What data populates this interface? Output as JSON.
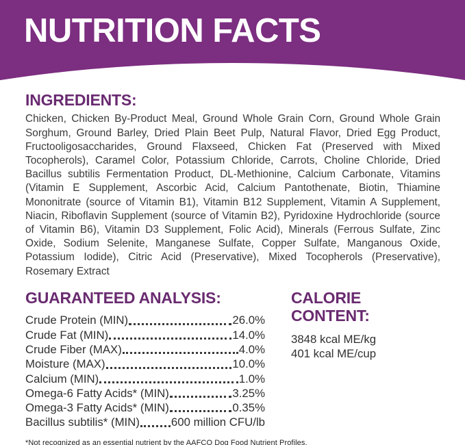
{
  "banner": {
    "title": "NUTRITION FACTS"
  },
  "ingredients": {
    "heading": "INGREDIENTS:",
    "text": "Chicken, Chicken By-Product Meal, Ground Whole Grain Corn, Ground Whole Grain Sorghum, Ground Barley, Dried Plain Beet Pulp, Natural Flavor, Dried Egg Product, Fructooligosaccharides, Ground Flaxseed, Chicken Fat (Preserved with Mixed Tocopherols), Caramel Color, Potassium Chloride, Carrots, Choline Chloride, Dried Bacillus subtilis Fermentation Product, DL-Methionine, Calcium Carbonate, Vitamins (Vitamin E Supplement, Ascorbic Acid, Calcium Pantothenate, Biotin, Thiamine Mononitrate (source of Vitamin B1), Vitamin B12 Supplement, Vitamin A Supplement, Niacin, Riboflavin Supplement (source of Vitamin B2), Pyridoxine Hydrochloride (source of Vitamin B6), Vitamin D3 Supplement, Folic Acid), Minerals (Ferrous Sulfate, Zinc Oxide, Sodium Selenite, Manganese Sulfate, Copper Sulfate, Manganous Oxide, Potassium Iodide), Citric Acid (Preservative), Mixed Tocopherols (Preservative), Rosemary Extract"
  },
  "guaranteed_analysis": {
    "heading": "GUARANTEED ANALYSIS:",
    "rows": [
      {
        "label": "Crude Protein (MIN)",
        "value": "26.0%"
      },
      {
        "label": "Crude Fat (MIN)",
        "value": "14.0%"
      },
      {
        "label": "Crude Fiber (MAX)",
        "value": "4.0%"
      },
      {
        "label": "Moisture (MAX)",
        "value": "10.0%"
      },
      {
        "label": "Calcium (MIN)",
        "value": "1.0%"
      },
      {
        "label": "Omega-6 Fatty Acids* (MIN)",
        "value": "3.25%"
      },
      {
        "label": "Omega-3 Fatty Acids* (MIN)",
        "value": "0.35%"
      },
      {
        "label": "Bacillus subtilis* (MIN)",
        "value": "600 million CFU/lb"
      }
    ]
  },
  "calorie_content": {
    "heading": "CALORIE CONTENT:",
    "lines": [
      "3848 kcal ME/kg",
      "401 kcal ME/cup"
    ]
  },
  "footnote": "*Not recognized as an essential nutrient by the AAFCO Dog Food Nutrient Profiles.",
  "colors": {
    "banner_purple": "#7c2e80",
    "heading_purple": "#692a70",
    "body_text": "#3a3a3a"
  }
}
